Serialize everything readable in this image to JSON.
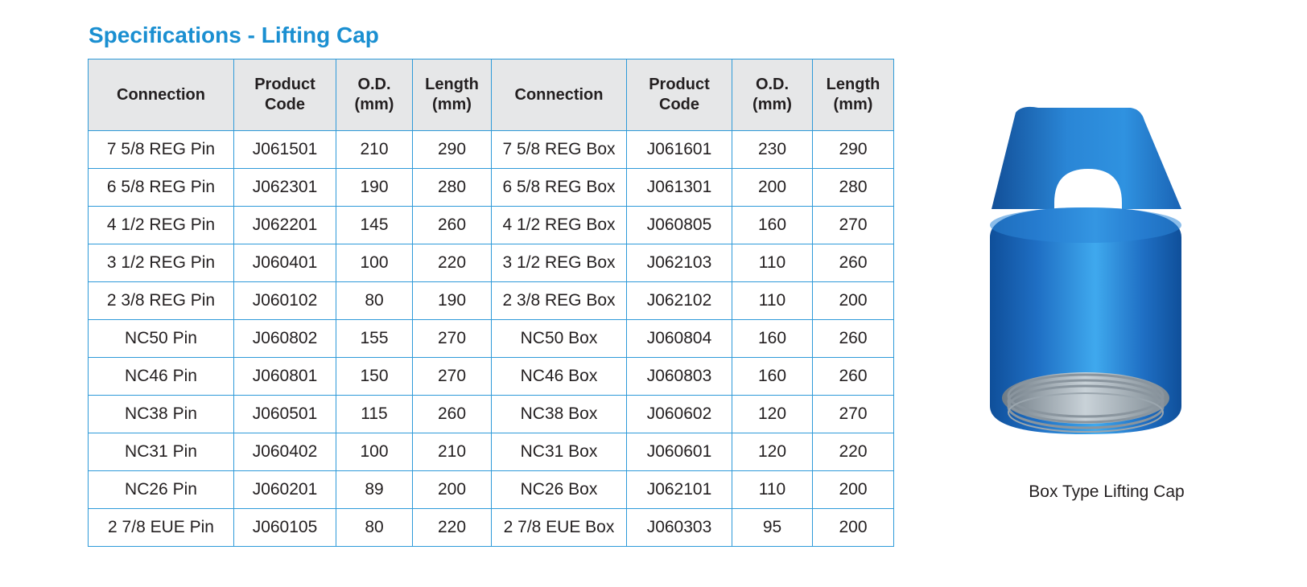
{
  "title": "Specifications - Lifting Cap",
  "table": {
    "headers": [
      {
        "line1": "Connection",
        "line2": ""
      },
      {
        "line1": "Product",
        "line2": "Code"
      },
      {
        "line1": "O.D.",
        "line2": "(mm)"
      },
      {
        "line1": "Length",
        "line2": "(mm)"
      },
      {
        "line1": "Connection",
        "line2": ""
      },
      {
        "line1": "Product",
        "line2": "Code"
      },
      {
        "line1": "O.D.",
        "line2": "(mm)"
      },
      {
        "line1": "Length",
        "line2": "(mm)"
      }
    ],
    "rows": [
      [
        "7 5/8 REG Pin",
        "J061501",
        "210",
        "290",
        "7 5/8 REG Box",
        "J061601",
        "230",
        "290"
      ],
      [
        "6 5/8 REG Pin",
        "J062301",
        "190",
        "280",
        "6 5/8 REG Box",
        "J061301",
        "200",
        "280"
      ],
      [
        "4 1/2 REG Pin",
        "J062201",
        "145",
        "260",
        "4 1/2 REG Box",
        "J060805",
        "160",
        "270"
      ],
      [
        "3 1/2 REG Pin",
        "J060401",
        "100",
        "220",
        "3 1/2 REG Box",
        "J062103",
        "110",
        "260"
      ],
      [
        "2 3/8 REG Pin",
        "J060102",
        "80",
        "190",
        "2 3/8 REG Box",
        "J062102",
        "110",
        "200"
      ],
      [
        "NC50 Pin",
        "J060802",
        "155",
        "270",
        "NC50 Box",
        "J060804",
        "160",
        "260"
      ],
      [
        "NC46 Pin",
        "J060801",
        "150",
        "270",
        "NC46 Box",
        "J060803",
        "160",
        "260"
      ],
      [
        "NC38 Pin",
        "J060501",
        "115",
        "260",
        "NC38 Box",
        "J060602",
        "120",
        "270"
      ],
      [
        "NC31 Pin",
        "J060402",
        "100",
        "210",
        "NC31 Box",
        "J060601",
        "120",
        "220"
      ],
      [
        "NC26 Pin",
        "J060201",
        "89",
        "200",
        "NC26 Box",
        "J062101",
        "110",
        "200"
      ],
      [
        "2 7/8 EUE Pin",
        "J060105",
        "80",
        "220",
        "2 7/8 EUE Box",
        "J060303",
        "95",
        "200"
      ]
    ]
  },
  "figure": {
    "caption": "Box Type Lifting Cap",
    "colors": {
      "body": "#1f6fc4",
      "body_highlight": "#3fa9ee",
      "thread": "#a7b3bc"
    }
  },
  "colors": {
    "title": "#1a8fd1",
    "border": "#2e9ad9",
    "header_bg": "#e6e7e8"
  }
}
